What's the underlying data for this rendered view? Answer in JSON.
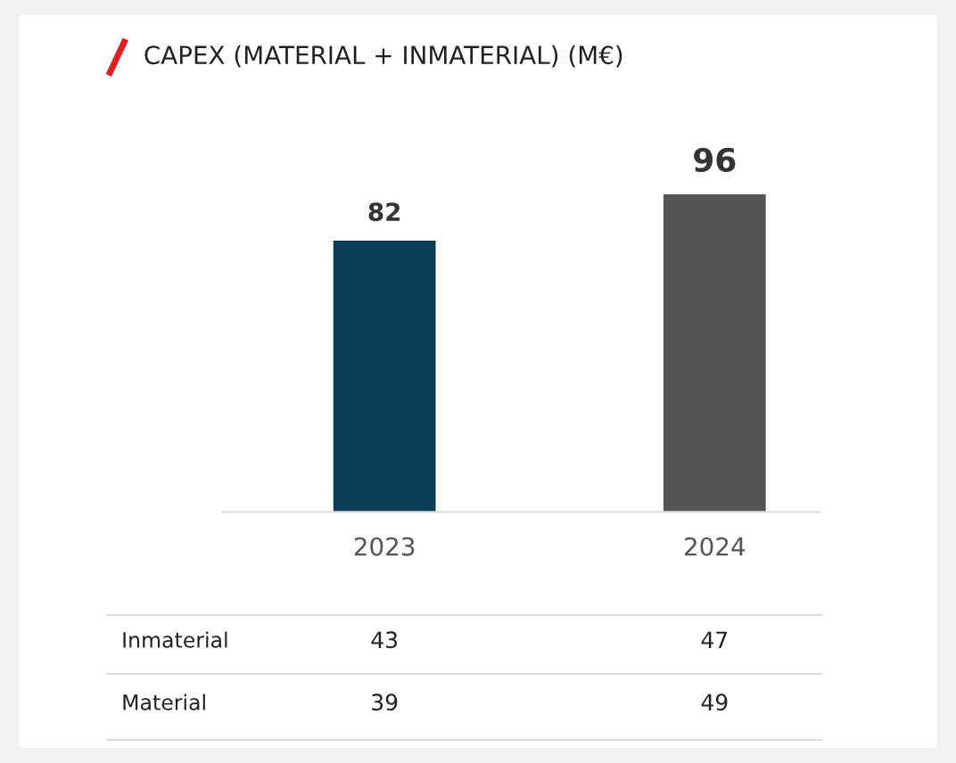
{
  "chart_data": {
    "type": "bar",
    "title": "CAPEX (MATERIAL + INMATERIAL) (M€)",
    "categories": [
      "2023",
      "2024"
    ],
    "values": [
      82,
      96
    ],
    "colors": [
      "#0b3c55",
      "#555555"
    ],
    "data_labels": true,
    "grid": false,
    "legend": false,
    "tick_labels": "x",
    "annotations": [
      "Inmaterial",
      "43",
      "47",
      "Material",
      "39",
      "49"
    ]
  }
}
